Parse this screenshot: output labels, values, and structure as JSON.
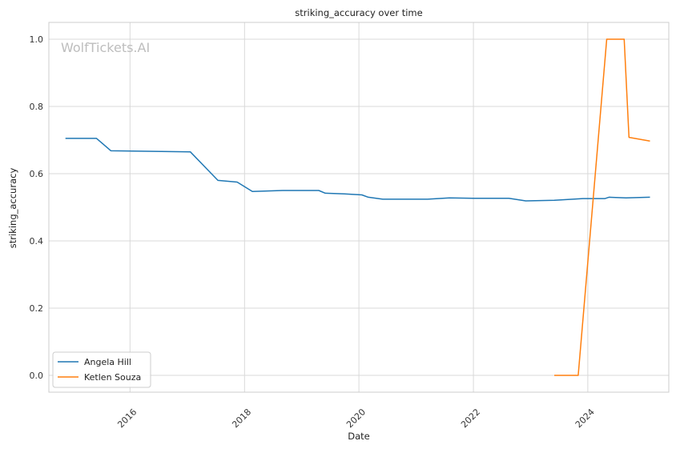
{
  "watermark": "WolfTickets.AI",
  "chart_data": {
    "type": "line",
    "title": "striking_accuracy over time",
    "xlabel": "Date",
    "ylabel": "striking_accuracy",
    "x_type": "date",
    "xlim": [
      "2014-08-01",
      "2025-06-01"
    ],
    "ylim": [
      -0.05,
      1.05
    ],
    "x_ticks": [
      "2016",
      "2018",
      "2020",
      "2022",
      "2024"
    ],
    "y_ticks": [
      "0.0",
      "0.2",
      "0.4",
      "0.6",
      "0.8",
      "1.0"
    ],
    "grid": true,
    "legend_position": "lower-left",
    "series": [
      {
        "name": "Angela Hill",
        "color": "#1f77b4",
        "points": [
          [
            "2014-11-15",
            0.705
          ],
          [
            "2015-06-01",
            0.705
          ],
          [
            "2015-09-01",
            0.668
          ],
          [
            "2017-01-20",
            0.665
          ],
          [
            "2017-07-15",
            0.58
          ],
          [
            "2017-11-15",
            0.575
          ],
          [
            "2018-02-20",
            0.547
          ],
          [
            "2018-09-01",
            0.55
          ],
          [
            "2019-04-20",
            0.55
          ],
          [
            "2019-06-01",
            0.542
          ],
          [
            "2019-10-01",
            0.54
          ],
          [
            "2020-01-20",
            0.537
          ],
          [
            "2020-03-01",
            0.53
          ],
          [
            "2020-06-01",
            0.524
          ],
          [
            "2021-03-15",
            0.524
          ],
          [
            "2021-08-01",
            0.528
          ],
          [
            "2022-01-01",
            0.527
          ],
          [
            "2022-08-15",
            0.527
          ],
          [
            "2022-12-01",
            0.519
          ],
          [
            "2023-06-01",
            0.521
          ],
          [
            "2023-12-01",
            0.526
          ],
          [
            "2024-04-20",
            0.526
          ],
          [
            "2024-05-15",
            0.53
          ],
          [
            "2024-09-01",
            0.528
          ],
          [
            "2025-02-01",
            0.53
          ]
        ]
      },
      {
        "name": "Ketlen Souza",
        "color": "#ff7f0e",
        "points": [
          [
            "2023-06-01",
            0.0
          ],
          [
            "2023-11-01",
            0.0
          ],
          [
            "2024-05-01",
            1.0
          ],
          [
            "2024-08-20",
            1.0
          ],
          [
            "2024-09-20",
            0.708
          ],
          [
            "2025-02-01",
            0.697
          ]
        ]
      }
    ]
  }
}
